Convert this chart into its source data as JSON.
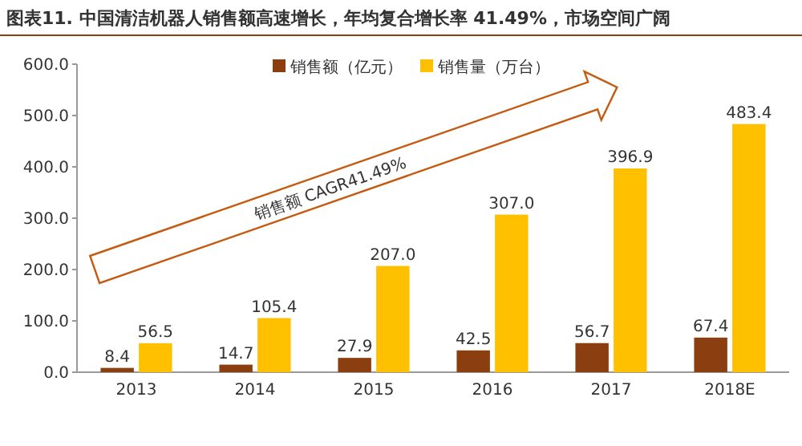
{
  "chart_data": {
    "type": "bar",
    "title": "图表11.  中国清洁机器人销售额高速增长，年均复合增长率 41.49%，市场空间广阔",
    "categories": [
      "2013",
      "2014",
      "2015",
      "2016",
      "2017",
      "2018E"
    ],
    "series": [
      {
        "name": "销售额（亿元）",
        "color": "#8b3e0f",
        "values": [
          8.4,
          14.7,
          27.9,
          42.5,
          56.7,
          67.4
        ],
        "value_labels": [
          "8.4",
          "14.7",
          "27.9",
          "42.5",
          "56.7",
          "67.4"
        ]
      },
      {
        "name": "销售量（万台）",
        "color": "#ffc000",
        "values": [
          56.5,
          105.4,
          207.0,
          307.0,
          396.9,
          483.4
        ],
        "value_labels": [
          "56.5",
          "105.4",
          "207.0",
          "307.0",
          "396.9",
          "483.4"
        ]
      }
    ],
    "ylim": [
      0,
      600
    ],
    "yticks": [
      {
        "value": 0,
        "label": "0.0"
      },
      {
        "value": 100,
        "label": "100.0"
      },
      {
        "value": 200,
        "label": "200.0"
      },
      {
        "value": 300,
        "label": "300.0"
      },
      {
        "value": 400,
        "label": "400.0"
      },
      {
        "value": 500,
        "label": "500.0"
      },
      {
        "value": 600,
        "label": "600.0"
      }
    ],
    "legend": "top",
    "grid": false,
    "annotations": [
      "销售额 CAGR41.49%"
    ]
  }
}
